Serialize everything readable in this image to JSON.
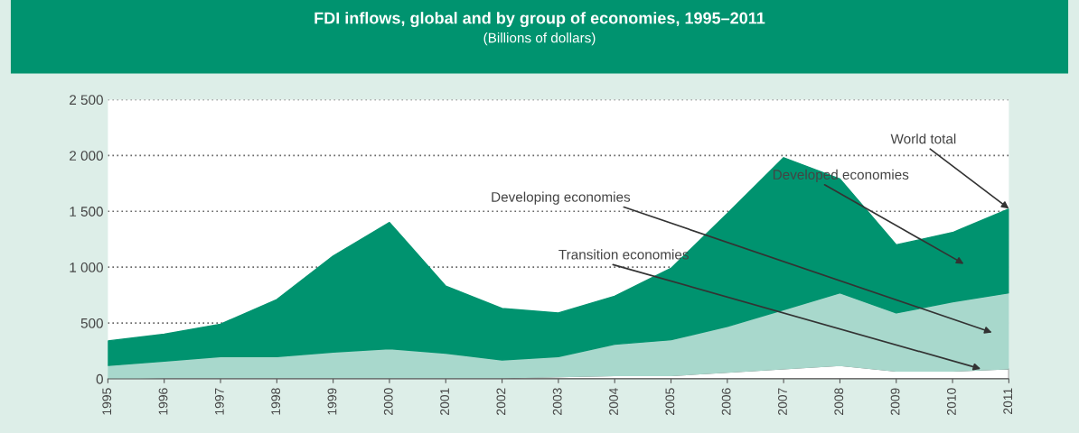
{
  "chart_data": {
    "type": "area",
    "stacked": true,
    "title": "FDI inflows, global and by group of economies, 1995–2011",
    "subtitle": "(Billions of dollars)",
    "categories": [
      "1995",
      "1996",
      "1997",
      "1998",
      "1999",
      "2000",
      "2001",
      "2002",
      "2003",
      "2004",
      "2005",
      "2006",
      "2007",
      "2008",
      "2009",
      "2010",
      "2011"
    ],
    "series": [
      {
        "name": "Transition economies",
        "color": "#ffffff",
        "values": [
          0,
          10,
          10,
          10,
          10,
          10,
          10,
          10,
          20,
          30,
          30,
          60,
          90,
          120,
          70,
          70,
          90
        ]
      },
      {
        "name": "Developing economies",
        "color": "#a8d8cc",
        "values": [
          120,
          150,
          190,
          190,
          230,
          260,
          220,
          160,
          180,
          280,
          320,
          410,
          530,
          650,
          520,
          620,
          680
        ]
      },
      {
        "name": "Developed economies",
        "color": "#00936f",
        "values": [
          220,
          240,
          290,
          510,
          860,
          1130,
          600,
          460,
          390,
          430,
          640,
          1010,
          1360,
          1020,
          610,
          620,
          750
        ]
      }
    ],
    "annotations": [
      {
        "text": "World total",
        "x": "2011",
        "y": 1524
      }
    ],
    "ylim": [
      0,
      2500
    ],
    "yticks": [
      {
        "value": 0,
        "label": "0"
      },
      {
        "value": 500,
        "label": "500"
      },
      {
        "value": 1000,
        "label": "1 000"
      },
      {
        "value": 1500,
        "label": "1 500"
      },
      {
        "value": 2000,
        "label": "2 000"
      },
      {
        "value": 2500,
        "label": "2 500"
      }
    ],
    "grid": "y",
    "legend": false
  }
}
